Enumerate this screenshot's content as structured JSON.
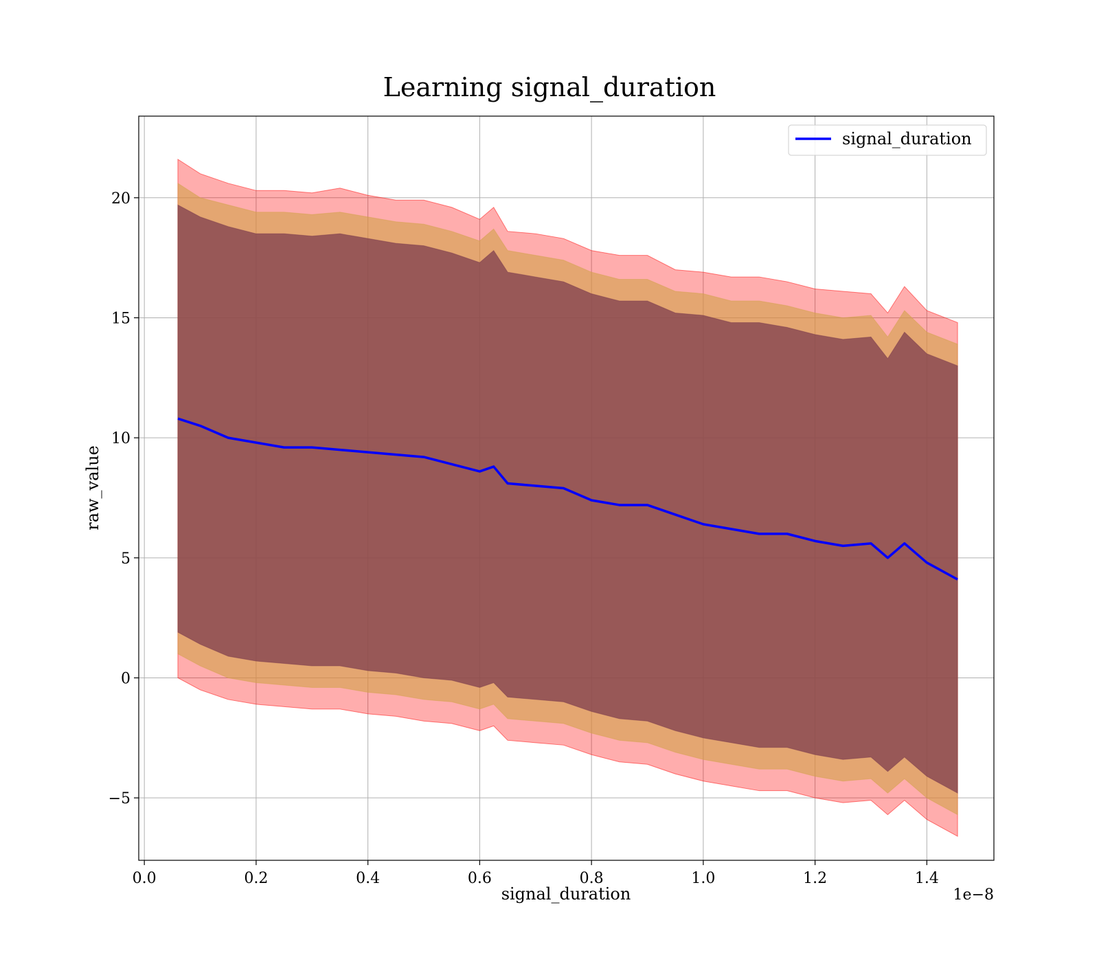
{
  "chart_data": {
    "type": "line",
    "title": "Learning signal_duration",
    "xlabel": "signal_duration",
    "ylabel": "raw_value",
    "x_offset_text": "1e−8",
    "x_scale_exponent": -8,
    "xlim": [
      -0.01,
      1.52
    ],
    "ylim": [
      -7.6,
      23.4
    ],
    "xticks": [
      0.0,
      0.2,
      0.4,
      0.6,
      0.8,
      1.0,
      1.2,
      1.4
    ],
    "xtick_labels": [
      "0.0",
      "0.2",
      "0.4",
      "0.6",
      "0.8",
      "1.0",
      "1.2",
      "1.4"
    ],
    "yticks": [
      -5,
      0,
      5,
      10,
      15,
      20
    ],
    "ytick_labels": [
      "−5",
      "0",
      "5",
      "10",
      "15",
      "20"
    ],
    "grid": true,
    "legend": {
      "position": "top-right",
      "entries": [
        "signal_duration"
      ]
    },
    "colors": {
      "line": "#0000ff",
      "band_outer": "#ff0000",
      "band_middle": "#d4a24c",
      "band_inner": "#7a3a4e"
    },
    "x": [
      0.06,
      0.1,
      0.15,
      0.2,
      0.25,
      0.3,
      0.35,
      0.4,
      0.45,
      0.5,
      0.55,
      0.6,
      0.625,
      0.65,
      0.7,
      0.75,
      0.8,
      0.85,
      0.9,
      0.95,
      1.0,
      1.05,
      1.1,
      1.15,
      1.2,
      1.25,
      1.3,
      1.33,
      1.36,
      1.4,
      1.455
    ],
    "series": [
      {
        "name": "signal_duration",
        "values": [
          10.8,
          10.5,
          10.0,
          9.8,
          9.6,
          9.6,
          9.5,
          9.4,
          9.3,
          9.2,
          8.9,
          8.6,
          8.8,
          8.1,
          8.0,
          7.9,
          7.4,
          7.2,
          7.2,
          6.8,
          6.4,
          6.2,
          6.0,
          6.0,
          5.7,
          5.5,
          5.6,
          5.0,
          5.6,
          4.8,
          4.1
        ]
      }
    ],
    "bands": [
      {
        "level": "outer",
        "upper": [
          21.6,
          21.0,
          20.6,
          20.3,
          20.3,
          20.2,
          20.4,
          20.1,
          19.9,
          19.9,
          19.6,
          19.1,
          19.6,
          18.6,
          18.5,
          18.3,
          17.8,
          17.6,
          17.6,
          17.0,
          16.9,
          16.7,
          16.7,
          16.5,
          16.2,
          16.1,
          16.0,
          15.2,
          16.3,
          15.3,
          14.8
        ],
        "lower": [
          0.0,
          -0.5,
          -0.9,
          -1.1,
          -1.2,
          -1.3,
          -1.3,
          -1.5,
          -1.6,
          -1.8,
          -1.9,
          -2.2,
          -2.0,
          -2.6,
          -2.7,
          -2.8,
          -3.2,
          -3.5,
          -3.6,
          -4.0,
          -4.3,
          -4.5,
          -4.7,
          -4.7,
          -5.0,
          -5.2,
          -5.1,
          -5.7,
          -5.1,
          -5.9,
          -6.6
        ]
      },
      {
        "level": "middle",
        "upper": [
          20.6,
          20.0,
          19.7,
          19.4,
          19.4,
          19.3,
          19.4,
          19.2,
          19.0,
          18.9,
          18.6,
          18.2,
          18.7,
          17.8,
          17.6,
          17.4,
          16.9,
          16.6,
          16.6,
          16.1,
          16.0,
          15.7,
          15.7,
          15.5,
          15.2,
          15.0,
          15.1,
          14.2,
          15.3,
          14.4,
          13.9
        ],
        "lower": [
          1.0,
          0.5,
          0.0,
          -0.2,
          -0.3,
          -0.4,
          -0.4,
          -0.6,
          -0.7,
          -0.9,
          -1.0,
          -1.3,
          -1.1,
          -1.7,
          -1.8,
          -1.9,
          -2.3,
          -2.6,
          -2.7,
          -3.1,
          -3.4,
          -3.6,
          -3.8,
          -3.8,
          -4.1,
          -4.3,
          -4.2,
          -4.8,
          -4.2,
          -5.0,
          -5.7
        ]
      },
      {
        "level": "inner",
        "upper": [
          19.7,
          19.2,
          18.8,
          18.5,
          18.5,
          18.4,
          18.5,
          18.3,
          18.1,
          18.0,
          17.7,
          17.3,
          17.8,
          16.9,
          16.7,
          16.5,
          16.0,
          15.7,
          15.7,
          15.2,
          15.1,
          14.8,
          14.8,
          14.6,
          14.3,
          14.1,
          14.2,
          13.3,
          14.4,
          13.5,
          13.0
        ],
        "lower": [
          1.9,
          1.4,
          0.9,
          0.7,
          0.6,
          0.5,
          0.5,
          0.3,
          0.2,
          0.0,
          -0.1,
          -0.4,
          -0.2,
          -0.8,
          -0.9,
          -1.0,
          -1.4,
          -1.7,
          -1.8,
          -2.2,
          -2.5,
          -2.7,
          -2.9,
          -2.9,
          -3.2,
          -3.4,
          -3.3,
          -3.9,
          -3.3,
          -4.1,
          -4.8
        ]
      }
    ]
  }
}
